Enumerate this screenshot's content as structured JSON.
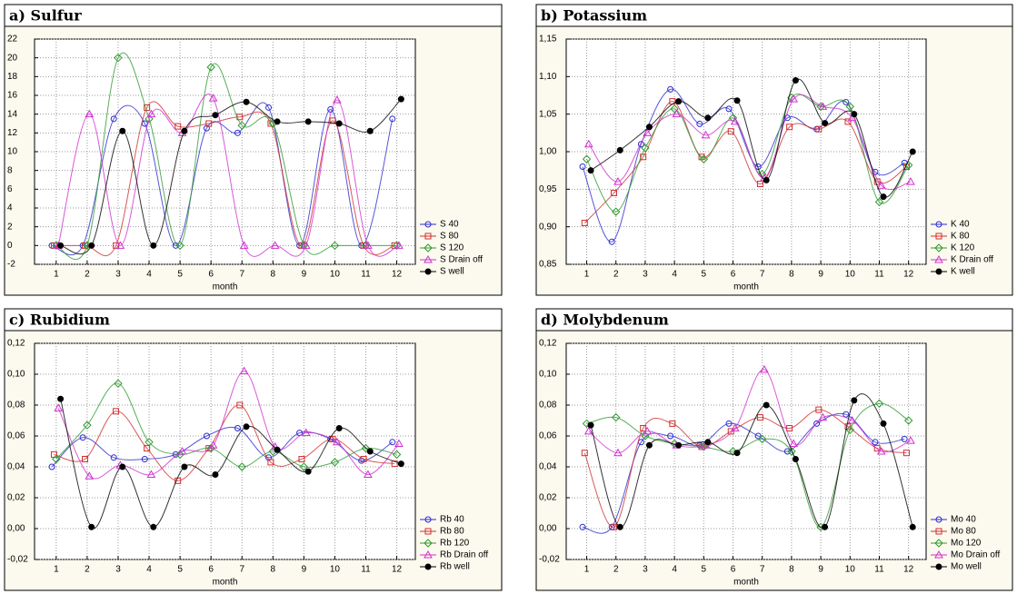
{
  "chart_data": [
    {
      "type": "scatter-smooth",
      "title": "a) Sulfur",
      "x_label": "month",
      "x": [
        1,
        2,
        3,
        4,
        5,
        6,
        7,
        8,
        9,
        10,
        11,
        12
      ],
      "xlim": [
        0.3,
        12.6
      ],
      "xticks": [
        1,
        2,
        3,
        4,
        5,
        6,
        7,
        8,
        9,
        10,
        11,
        12
      ],
      "ylim": [
        -2,
        22
      ],
      "yticks": [
        -2,
        0,
        2,
        4,
        6,
        8,
        10,
        12,
        14,
        16,
        18,
        20,
        22
      ],
      "grid": true,
      "series": [
        {
          "name": "S 40",
          "color": "#2b2bd0",
          "values": [
            0,
            0,
            13.5,
            13,
            0,
            12.5,
            12,
            14.7,
            0,
            14.5,
            0,
            13.5
          ]
        },
        {
          "name": "S 80",
          "color": "#d03030",
          "values": [
            0,
            0,
            0,
            14.7,
            12.7,
            13,
            13.7,
            13,
            0,
            13.3,
            0,
            0
          ]
        },
        {
          "name": "S 120",
          "color": "#2f9a2f",
          "values": [
            0,
            0,
            20,
            13.5,
            0,
            19,
            12.8,
            13,
            0,
            0,
            0,
            0
          ]
        },
        {
          "name": "S Drain off",
          "color": "#d030d0",
          "values": [
            0,
            14,
            0,
            14,
            12,
            15.7,
            0,
            0,
            0,
            15.5,
            0,
            0
          ]
        },
        {
          "name": "S well",
          "color": "#000000",
          "values": [
            0,
            0,
            12.2,
            0,
            12.2,
            13.9,
            15.3,
            13.2,
            13.2,
            13,
            12.2,
            15.6
          ]
        }
      ]
    },
    {
      "type": "scatter-smooth",
      "title": "b) Potassium",
      "x_label": "month",
      "x": [
        1,
        2,
        3,
        4,
        5,
        6,
        7,
        8,
        9,
        10,
        11,
        12
      ],
      "xlim": [
        0.3,
        12.6
      ],
      "xticks": [
        1,
        2,
        3,
        4,
        5,
        6,
        7,
        8,
        9,
        10,
        11,
        12
      ],
      "ylim": [
        0.85,
        1.15
      ],
      "yticks": [
        {
          "value": 0.85,
          "label": "0,85"
        },
        {
          "value": 0.9,
          "label": "0,90"
        },
        {
          "value": 0.95,
          "label": "0,95"
        },
        {
          "value": 1.0,
          "label": "1,00"
        },
        {
          "value": 1.05,
          "label": "1,05"
        },
        {
          "value": 1.1,
          "label": "1,10"
        },
        {
          "value": 1.15,
          "label": "1,15"
        }
      ],
      "grid": true,
      "series": [
        {
          "name": "K 40",
          "color": "#2b2bd0",
          "values": [
            0.98,
            0.88,
            1.01,
            1.083,
            1.037,
            1.057,
            0.98,
            1.045,
            1.03,
            1.066,
            0.973,
            0.985
          ]
        },
        {
          "name": "K 80",
          "color": "#d03030",
          "values": [
            0.905,
            0.945,
            0.993,
            1.067,
            0.993,
            1.027,
            0.957,
            1.033,
            1.03,
            1.04,
            0.96,
            0.98
          ]
        },
        {
          "name": "K 120",
          "color": "#2f9a2f",
          "values": [
            0.99,
            0.92,
            1.005,
            1.057,
            0.99,
            1.045,
            0.97,
            1.072,
            1.06,
            1.06,
            0.933,
            0.982
          ]
        },
        {
          "name": "K Drain off",
          "color": "#d030d0",
          "values": [
            1.01,
            0.96,
            1.025,
            1.05,
            1.022,
            1.04,
            0.965,
            1.07,
            1.06,
            1.045,
            0.955,
            0.96
          ]
        },
        {
          "name": "K well",
          "color": "#000000",
          "values": [
            0.975,
            1.002,
            1.033,
            1.067,
            1.045,
            1.068,
            0.962,
            1.095,
            1.038,
            1.05,
            0.94,
            1.0
          ]
        }
      ]
    },
    {
      "type": "scatter-smooth",
      "title": "c) Rubidium",
      "x_label": "month",
      "x": [
        1,
        2,
        3,
        4,
        5,
        6,
        7,
        8,
        9,
        10,
        11,
        12
      ],
      "xlim": [
        0.3,
        12.6
      ],
      "xticks": [
        1,
        2,
        3,
        4,
        5,
        6,
        7,
        8,
        9,
        10,
        11,
        12
      ],
      "ylim": [
        -0.02,
        0.12
      ],
      "yticks": [
        {
          "value": -0.02,
          "label": "-0,02"
        },
        {
          "value": 0,
          "label": "0,00"
        },
        {
          "value": 0.02,
          "label": "0,02"
        },
        {
          "value": 0.04,
          "label": "0,04"
        },
        {
          "value": 0.06,
          "label": "0,06"
        },
        {
          "value": 0.08,
          "label": "0,08"
        },
        {
          "value": 0.1,
          "label": "0,10"
        },
        {
          "value": 0.12,
          "label": "0,12"
        }
      ],
      "grid": true,
      "series": [
        {
          "name": "Rb 40",
          "color": "#2b2bd0",
          "values": [
            0.04,
            0.059,
            0.046,
            0.045,
            0.048,
            0.06,
            0.065,
            0.046,
            0.062,
            0.058,
            0.044,
            0.056
          ]
        },
        {
          "name": "Rb 80",
          "color": "#d03030",
          "values": [
            0.048,
            0.045,
            0.076,
            0.052,
            0.031,
            0.052,
            0.08,
            0.043,
            0.045,
            0.058,
            0.045,
            0.042
          ]
        },
        {
          "name": "Rb 120",
          "color": "#2f9a2f",
          "values": [
            0.045,
            0.067,
            0.094,
            0.056,
            0.048,
            0.052,
            0.04,
            0.05,
            0.04,
            0.043,
            0.052,
            0.048
          ]
        },
        {
          "name": "Rb Drain off",
          "color": "#d030d0",
          "values": [
            0.078,
            0.034,
            0.041,
            0.035,
            0.05,
            0.054,
            0.102,
            0.053,
            0.062,
            0.056,
            0.035,
            0.055
          ]
        },
        {
          "name": "Rb well",
          "color": "#000000",
          "values": [
            0.084,
            0.001,
            0.04,
            0.001,
            0.04,
            0.035,
            0.066,
            0.051,
            0.037,
            0.065,
            0.05,
            0.042
          ]
        }
      ]
    },
    {
      "type": "scatter-smooth",
      "title": "d) Molybdenum",
      "x_label": "month",
      "x": [
        1,
        2,
        3,
        4,
        5,
        6,
        7,
        8,
        9,
        10,
        11,
        12
      ],
      "xlim": [
        0.3,
        12.6
      ],
      "xticks": [
        1,
        2,
        3,
        4,
        5,
        6,
        7,
        8,
        9,
        10,
        11,
        12
      ],
      "ylim": [
        -0.02,
        0.12
      ],
      "yticks": [
        {
          "value": -0.02,
          "label": "-0,02"
        },
        {
          "value": 0,
          "label": "0,00"
        },
        {
          "value": 0.02,
          "label": "0,02"
        },
        {
          "value": 0.04,
          "label": "0,04"
        },
        {
          "value": 0.06,
          "label": "0,06"
        },
        {
          "value": 0.08,
          "label": "0,08"
        },
        {
          "value": 0.1,
          "label": "0,10"
        },
        {
          "value": 0.12,
          "label": "0,12"
        }
      ],
      "grid": true,
      "series": [
        {
          "name": "Mo 40",
          "color": "#2b2bd0",
          "values": [
            0.001,
            0.001,
            0.056,
            0.06,
            0.054,
            0.068,
            0.06,
            0.05,
            0.068,
            0.074,
            0.056,
            0.058
          ]
        },
        {
          "name": "Mo 80",
          "color": "#d03030",
          "values": [
            0.049,
            0.001,
            0.065,
            0.068,
            0.053,
            0.063,
            0.072,
            0.065,
            0.077,
            0.066,
            0.052,
            0.049
          ]
        },
        {
          "name": "Mo 120",
          "color": "#2f9a2f",
          "values": [
            0.068,
            0.072,
            0.06,
            0.055,
            0.053,
            0.05,
            0.058,
            0.05,
            0.001,
            0.064,
            0.081,
            0.07
          ]
        },
        {
          "name": "Mo Drain off",
          "color": "#d030d0",
          "values": [
            0.063,
            0.049,
            0.063,
            0.054,
            0.054,
            0.065,
            0.103,
            0.055,
            0.072,
            0.07,
            0.05,
            0.057
          ]
        },
        {
          "name": "Mo well",
          "color": "#000000",
          "values": [
            0.067,
            0.001,
            0.054,
            0.054,
            0.056,
            0.049,
            0.08,
            0.045,
            0.001,
            0.083,
            0.068,
            0.001
          ]
        }
      ]
    }
  ]
}
